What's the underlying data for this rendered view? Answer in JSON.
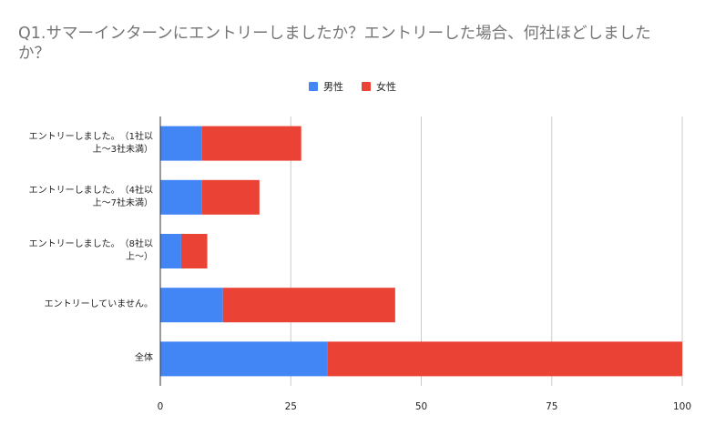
{
  "chart_data": {
    "type": "bar",
    "orientation": "horizontal",
    "stacked": true,
    "title": "Q1.サマーインターンにエントリーしましたか？エントリーした場合、何社ほどしましたか？",
    "categories": [
      "エントリーしました。　（1社以上〜3社未満）",
      "エントリーしました。　（4社以上〜7社未満）",
      "エントリーしました。　（8社以上〜）",
      "エントリーしていません。",
      "全体"
    ],
    "series": [
      {
        "name": "男性",
        "color": "#4285F4",
        "values": [
          8,
          8,
          4,
          12,
          32
        ]
      },
      {
        "name": "女性",
        "color": "#EA4335",
        "values": [
          19,
          11,
          5,
          33,
          68
        ]
      }
    ],
    "xlim": [
      0,
      100
    ],
    "xticks": [
      0,
      25,
      50,
      75,
      100
    ],
    "grid": true,
    "legend": "top"
  }
}
